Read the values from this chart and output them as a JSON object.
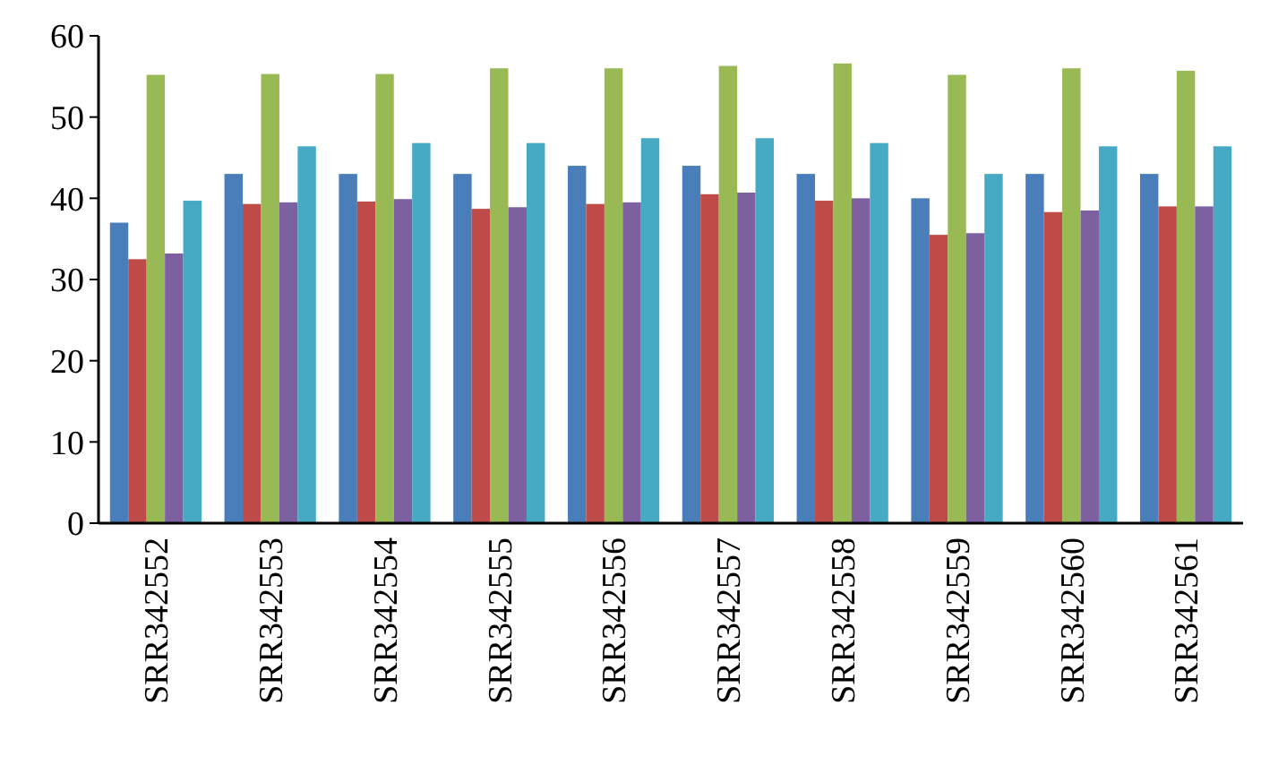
{
  "chart_data": {
    "type": "bar",
    "categories": [
      "SRR342552",
      "SRR342553",
      "SRR342554",
      "SRR342555",
      "SRR342556",
      "SRR342557",
      "SRR342558",
      "SRR342559",
      "SRR342560",
      "SRR342561"
    ],
    "series": [
      {
        "color": "#4a7ebb",
        "values": [
          37,
          43,
          43,
          43,
          44,
          44,
          43,
          40,
          43,
          43
        ]
      },
      {
        "color": "#be4b48",
        "values": [
          32.5,
          39.3,
          39.6,
          38.7,
          39.3,
          40.5,
          39.7,
          35.5,
          38.3,
          39
        ]
      },
      {
        "color": "#98b954",
        "values": [
          55.2,
          55.3,
          55.3,
          56,
          56,
          56.3,
          56.6,
          55.2,
          56,
          55.7
        ]
      },
      {
        "color": "#7d60a0",
        "values": [
          33.2,
          39.5,
          39.9,
          38.9,
          39.5,
          40.7,
          40,
          35.7,
          38.5,
          39
        ]
      },
      {
        "color": "#46aac5",
        "values": [
          39.7,
          46.4,
          46.8,
          46.8,
          47.4,
          47.4,
          46.8,
          43,
          46.4,
          46.4
        ]
      }
    ],
    "ylim": [
      0,
      60
    ],
    "yticks": [
      0,
      10,
      20,
      30,
      40,
      50,
      60
    ],
    "grid": false
  }
}
